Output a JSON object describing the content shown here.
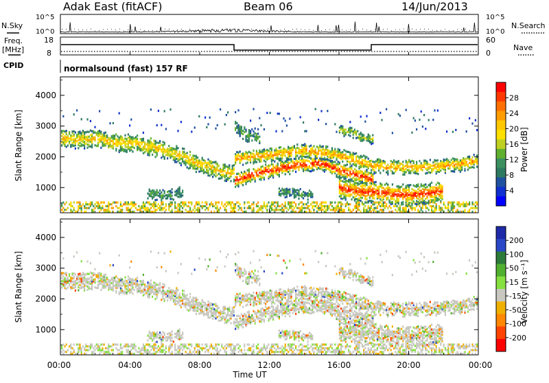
{
  "header": {
    "station": "Adak East (fitACF)",
    "beam": "Beam 06",
    "date": "14/Jun/2013"
  },
  "labels": {
    "nsky": "N.Sky",
    "nsearch": "N.Search",
    "freq": "Freq.",
    "freq_unit": "[MHz]",
    "nave": "Nave",
    "cpid": "CPID",
    "cpid_value": "normalsound (fast) 157 RF",
    "x_title": "Time UT",
    "y_title": "Slant Range [km]"
  },
  "noise_panel": {
    "left_ticks": [
      "10^5",
      "10^0"
    ],
    "right_ticks": [
      "10^5",
      "10^0"
    ]
  },
  "freq_panel": {
    "left_ticks": [
      "18",
      "8"
    ],
    "right_ticks": [
      "60",
      "0"
    ]
  },
  "time_ticks": [
    "00:00",
    "04:00",
    "08:00",
    "12:00",
    "16:00",
    "20:00",
    "00:00"
  ],
  "range_ticks": [
    "1000",
    "2000",
    "3000",
    "4000"
  ],
  "power_scale": {
    "title": "Power [dB]",
    "labels": [
      "28",
      "24",
      "20",
      "16",
      "12",
      "8",
      "4"
    ],
    "colors": [
      "#ff0000",
      "#ff3800",
      "#ff7000",
      "#ff9c00",
      "#ffc800",
      "#ffe000",
      "#c0d020",
      "#60b030",
      "#3c9060",
      "#2e7a60",
      "#2050a0",
      "#1030d0",
      "#0000ff"
    ]
  },
  "velocity_scale": {
    "title": "Velocity [m s⁻¹]",
    "labels": [
      "200",
      "100",
      "50",
      "15",
      "-15",
      "-50",
      "-100",
      "-200"
    ],
    "colors": [
      "#1e2aa8",
      "#2848c8",
      "#2e7a3a",
      "#52b030",
      "#86e040",
      "#c8c8c0",
      "#f0b000",
      "#ff8800",
      "#ff4400",
      "#ff0000"
    ]
  },
  "chart_data": [
    {
      "type": "heatmap",
      "title": "Power",
      "xlabel": "Time UT",
      "ylabel": "Slant Range [km]",
      "xlim": [
        "00:00",
        "24:00"
      ],
      "ylim": [
        180,
        4600
      ],
      "colorbar": "Power [dB]",
      "bands": [
        {
          "t": [
            0,
            1,
            2,
            3,
            4,
            5,
            6,
            7,
            8,
            9,
            10
          ],
          "r": [
            2650,
            2600,
            2650,
            2500,
            2500,
            2400,
            2250,
            2050,
            1800,
            1600,
            1500
          ],
          "w": 280,
          "core": 0.45
        },
        {
          "t": [
            10,
            11,
            12,
            13,
            14,
            15,
            16,
            17,
            18
          ],
          "r": [
            1250,
            1450,
            1600,
            1700,
            1800,
            1850,
            1600,
            1450,
            1300
          ],
          "w": 230,
          "core": 0.8
        },
        {
          "t": [
            10,
            12,
            14,
            16,
            18,
            19,
            20,
            21,
            22,
            23,
            24
          ],
          "r": [
            2000,
            2100,
            2250,
            2100,
            1750,
            1700,
            1700,
            1700,
            1750,
            1800,
            1900
          ],
          "w": 220,
          "core": 0.55
        },
        {
          "t": [
            16,
            17,
            18,
            19,
            20,
            21,
            22
          ],
          "r": [
            1050,
            900,
            900,
            850,
            800,
            850,
            950
          ],
          "w": 320,
          "core": 0.75
        },
        {
          "t": [
            5,
            6,
            7
          ],
          "r": [
            850,
            800,
            900
          ],
          "w": 180,
          "core": 0.1
        },
        {
          "t": [
            12.5,
            13.5,
            14.5
          ],
          "r": [
            900,
            850,
            800
          ],
          "w": 140,
          "core": 0.1
        },
        {
          "t": [
            16,
            16.7,
            17.4,
            18
          ],
          "r": [
            2900,
            2850,
            2650,
            2600
          ],
          "w": 140,
          "core": 0.3
        },
        {
          "t": [
            10,
            10.8,
            11.5
          ],
          "r": [
            3000,
            2750,
            2600
          ],
          "w": 220,
          "core": 0.1
        }
      ]
    },
    {
      "type": "heatmap",
      "title": "Velocity",
      "xlabel": "Time UT",
      "ylabel": "Slant Range [km]",
      "xlim": [
        "00:00",
        "24:00"
      ],
      "ylim": [
        180,
        4600
      ],
      "colorbar": "Velocity [m s⁻¹]",
      "clim": [
        -200,
        200
      ]
    }
  ]
}
